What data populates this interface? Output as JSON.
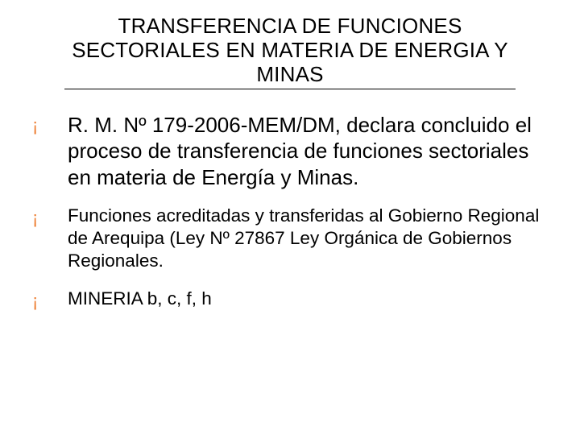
{
  "colors": {
    "bullet_color": "#ed7d31",
    "text_color": "#000000",
    "background_color": "#ffffff",
    "rule_color": "#000000"
  },
  "typography": {
    "title_fontsize_pt": 20,
    "bullet_large_fontsize_pt": 20,
    "bullet_small_fontsize_pt": 17,
    "font_family": "Verdana"
  },
  "title": "TRANSFERENCIA DE FUNCIONES SECTORIALES EN MATERIA DE ENERGIA Y MINAS",
  "bullets": [
    {
      "size": "large",
      "text": "R. M. Nº 179-2006-MEM/DM, declara concluido el proceso de transferencia de funciones sectoriales en materia de Energía y Minas."
    },
    {
      "size": "small",
      "text": "Funciones acreditadas y transferidas al Gobierno Regional de Arequipa (Ley Nº 27867 Ley Orgánica de Gobiernos Regionales."
    },
    {
      "size": "small",
      "text": "MINERIA  b, c, f, h"
    }
  ]
}
